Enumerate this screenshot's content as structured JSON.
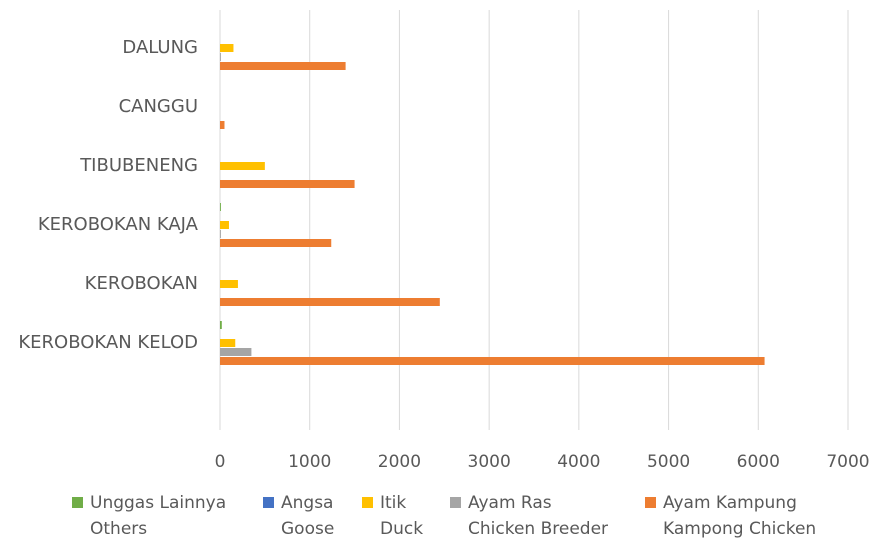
{
  "chart_data": {
    "type": "hbar",
    "categories": [
      "DALUNG",
      "CANGGU",
      "TIBUBENENG",
      "KEROBOKAN KAJA",
      "KEROBOKAN",
      "KEROBOKAN KELOD"
    ],
    "series": [
      {
        "name": "Unggas Lainnya\nOthers",
        "color": "#70ad47",
        "values": [
          0,
          0,
          0,
          10,
          0,
          20
        ]
      },
      {
        "name": "Angsa\nGoose",
        "color": "#4472c4",
        "values": [
          0,
          0,
          0,
          0,
          0,
          0
        ]
      },
      {
        "name": "Itik\nDuck",
        "color": "#ffc000",
        "values": [
          150,
          0,
          500,
          100,
          200,
          170
        ]
      },
      {
        "name": "Ayam Ras\nChicken Breeder",
        "color": "#a5a5a5",
        "values": [
          10,
          0,
          0,
          10,
          0,
          350
        ]
      },
      {
        "name": "Ayam Kampung\nKampong Chicken",
        "color": "#ed7d31",
        "values": [
          1400,
          50,
          1500,
          1240,
          2450,
          6070
        ]
      }
    ],
    "xlim": [
      0,
      7000
    ],
    "xticks": [
      0,
      1000,
      2000,
      3000,
      4000,
      5000,
      6000,
      7000
    ],
    "grid": true
  }
}
